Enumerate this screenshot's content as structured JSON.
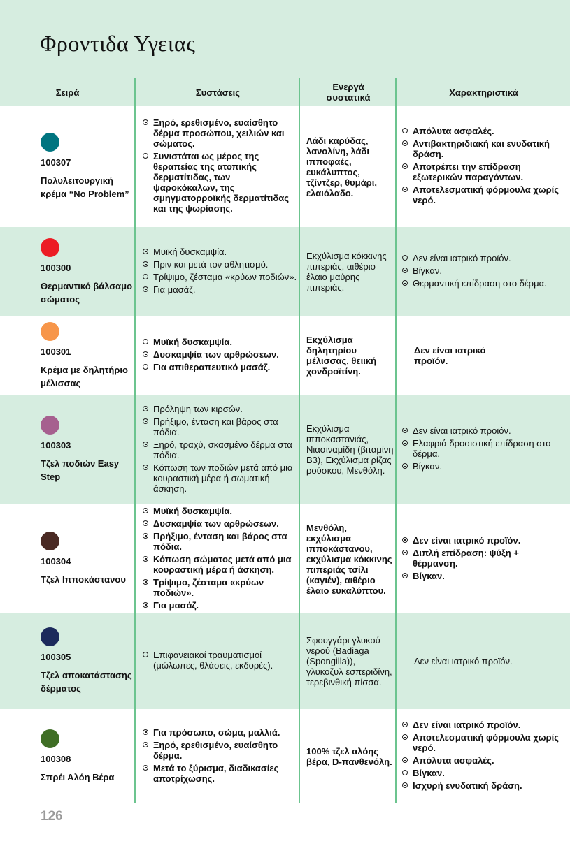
{
  "title": "Φροντιδα Υγειας",
  "columns": [
    "Σειρά",
    "Συστάσεις",
    "Ενεργά συστατικά",
    "Χαρακτηριστικά"
  ],
  "rows": [
    {
      "color": "#007580",
      "code": "100307",
      "name": "Πολυλειτουργική κρέμα “No Problem”",
      "recommendations": [
        "Ξηρό, ερεθισμένο, ευαίσθητο δέρμα προσώπου, χειλιών και σώματος.",
        "Συνιστάται ως μέρος της θεραπείας της ατοπικής δερματίτιδας, των ψαροκόκαλων, της σμηγματορροϊκής δερματίτιδας και της ψωρίασης."
      ],
      "ingredients": "Λάδι καρύδας, λανολίνη, λάδι ιπποφαές, ευκάλυπτος, τζίντζερ, θυμάρι, ελαιόλαδο.",
      "features": [
        "Απόλυτα ασφαλές.",
        "Αντιβακτηριδιακή και ενυδατική δράση.",
        "Αποτρέπει την επίδραση εξωτερικών παραγόντων.",
        "Αποτελεσματική φόρμουλα χωρίς νερό."
      ]
    },
    {
      "color": "#ec1c24",
      "code": "100300",
      "name": "Θερμαντικό βάλσαμο σώματος",
      "recommendations": [
        "Μυϊκή δυσκαμψία.",
        "Πριν και μετά τον αθλητισμό.",
        "Τρίψιμο, ζέσταμα «κρύων ποδιών».",
        "Για μασάζ."
      ],
      "ingredients": "Εκχύλισμα κόκκινης πιπεριάς, αιθέριο έλαιο μαύρης πιπεριάς.",
      "features": [
        "Δεν είναι ιατρικό προϊόν.",
        "Βίγκαν.",
        "Θερμαντική επίδραση στο δέρμα."
      ]
    },
    {
      "color": "#f7964a",
      "code": "100301",
      "name": "Κρέμα με δηλητήριο μέλισσας",
      "recommendations": [
        "Μυϊκή δυσκαμψία.",
        "Δυσκαμψία των αρθρώσεων.",
        "Για απιθεραπευτικό μασάζ."
      ],
      "ingredients": "Εκχύλισμα δηλητηρίου μέλισσας, θειική χονδροϊτίνη.",
      "features_text": "Δεν είναι ιατρικό προϊόν."
    },
    {
      "color": "#a6608f",
      "code": "100303",
      "name": "Τζελ ποδιών Easy Step",
      "recommendations": [
        "Πρόληψη των κιρσών.",
        "Πρήξιμο, ένταση και βάρος στα πόδια.",
        "Ξηρό, τραχύ, σκασμένο δέρμα στα πόδια.",
        "Κόπωση των ποδιών μετά από μια κουραστική μέρα ή σωματική άσκηση."
      ],
      "ingredients": "Εκχύλισμα ιπποκαστανιάς, Νιασιναμίδη (βιταμίνη B3), Εκχύλισμα ρίζας ρούσκου, Μενθόλη.",
      "features": [
        "Δεν είναι ιατρικό προϊόν.",
        "Ελαφριά δροσιστική επίδραση στο δέρμα.",
        "Βίγκαν."
      ]
    },
    {
      "color": "#4a2a24",
      "code": "100304",
      "name": "Τζελ Ιπποκάστανου",
      "recommendations": [
        "Μυϊκή δυσκαμψία.",
        "Δυσκαμψία των αρθρώσεων.",
        "Πρήξιμο, ένταση και βάρος στα πόδια.",
        "Κόπωση σώματος μετά από μια κουραστική μέρα ή άσκηση.",
        "Τρίψιμο, ζέσταμα «κρύων ποδιών».",
        "Για μασάζ."
      ],
      "ingredients": "Μενθόλη, εκχύλισμα ιπποκάστανου, εκχύλισμα κόκκινης πιπεριάς τσίλι (καγιέν), αιθέριο έλαιο ευκαλύπτου.",
      "features": [
        "Δεν είναι ιατρικό προϊόν.",
        "Διπλή επίδραση: ψύξη + θέρμανση.",
        "Βίγκαν."
      ]
    },
    {
      "color": "#1c2a5c",
      "code": "100305",
      "name": "Τζελ αποκατάστασης δέρματος",
      "recommendations": [
        "Επιφανειακοί τραυματισμοί (μώλωπες, θλάσεις, εκδορές)."
      ],
      "ingredients": "Σφουγγάρι γλυκού νερού (Badiaga (Spongilla)), γλυκοζυλ εσπεριδίνη, τερεβινθική πίσσα.",
      "features_text": "Δεν είναι ιατρικό προϊόν."
    },
    {
      "color": "#3f6e25",
      "code": "100308",
      "name": "Σπρέι Αλόη Βέρα",
      "recommendations": [
        "Για πρόσωπο, σώμα, μαλλιά.",
        "Ξηρό, ερεθισμένο, ευαίσθητο δέρμα.",
        "Μετά το ξύρισμα, διαδικασίες αποτρίχωσης."
      ],
      "ingredients": "100% τζελ αλόης βέρα, D-πανθενόλη.",
      "features": [
        "Δεν είναι ιατρικό προϊόν.",
        "Αποτελεσματική φόρμουλα χωρίς νερό.",
        "Απόλυτα ασφαλές.",
        "Βίγκαν.",
        "Ισχυρή ενυδατική δράση."
      ]
    }
  ],
  "page_number": "126"
}
